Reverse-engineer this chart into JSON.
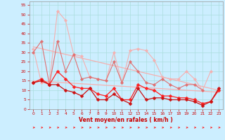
{
  "x": [
    0,
    1,
    2,
    3,
    4,
    5,
    6,
    7,
    8,
    9,
    10,
    11,
    12,
    13,
    14,
    15,
    16,
    17,
    18,
    19,
    20,
    21,
    22,
    23
  ],
  "line1_light": [
    32,
    14,
    14,
    52,
    47,
    29,
    28,
    17,
    16,
    15,
    30,
    14,
    31,
    32,
    31,
    26,
    17,
    16,
    16,
    20,
    16,
    10,
    20,
    null
  ],
  "line2_medium": [
    30,
    36,
    13,
    36,
    20,
    29,
    16,
    17,
    16,
    15,
    25,
    14,
    25,
    20,
    14,
    13,
    16,
    13,
    11,
    13,
    13,
    10,
    null,
    null
  ],
  "line3_vent_max": [
    14,
    16,
    13,
    20,
    16,
    12,
    11,
    11,
    8,
    7,
    11,
    5,
    5,
    13,
    11,
    10,
    7,
    7,
    6,
    6,
    5,
    3,
    4,
    10
  ],
  "line4_vent_moy": [
    14,
    15,
    13,
    13,
    10,
    9,
    7,
    11,
    5,
    5,
    8,
    5,
    3,
    11,
    5,
    6,
    6,
    5,
    5,
    5,
    4,
    2,
    4,
    11
  ],
  "trend1_x": [
    0,
    23
  ],
  "trend1_y": [
    33,
    10
  ],
  "trend2_x": [
    0,
    23
  ],
  "trend2_y": [
    15,
    9
  ],
  "color_light_pink": "#f5b0b0",
  "color_medium_pink": "#e07070",
  "color_dark_red": "#cc1111",
  "color_bright_red": "#ff2020",
  "color_trend_light": "#dd8888",
  "bg_color": "#cceeff",
  "grid_color": "#aadddd",
  "axis_label_color": "#cc0000",
  "ylim": [
    0,
    57
  ],
  "xlim": [
    -0.5,
    23.5
  ],
  "yticks": [
    0,
    5,
    10,
    15,
    20,
    25,
    30,
    35,
    40,
    45,
    50,
    55
  ],
  "xticks": [
    0,
    1,
    2,
    3,
    4,
    5,
    6,
    7,
    8,
    9,
    10,
    11,
    12,
    13,
    14,
    15,
    16,
    17,
    18,
    19,
    20,
    21,
    22,
    23
  ],
  "xlabel": "Vent moyen/en rafales ( km/h )"
}
